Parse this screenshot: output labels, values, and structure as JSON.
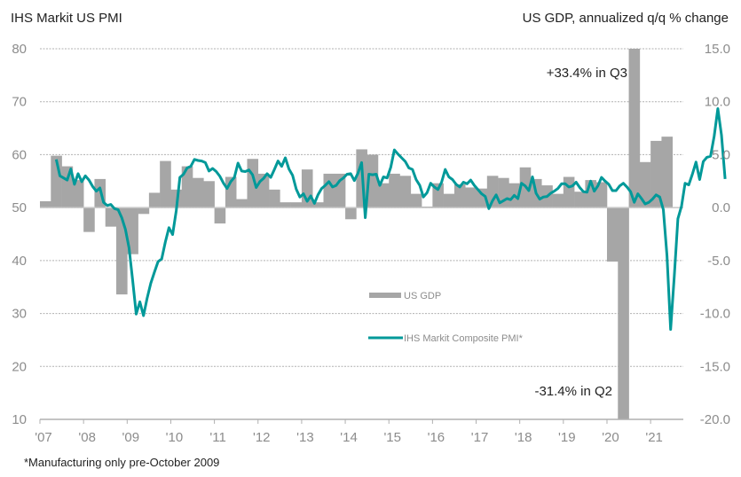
{
  "chart_data": {
    "type": "bar+line",
    "title_left": "IHS Markit  US PMI",
    "title_right": "US GDP, annualized  q/q % change",
    "footnote": "*Manufacturing only pre-October 2009",
    "left_axis": {
      "label": "IHS Markit US PMI",
      "ylim": [
        10,
        80
      ],
      "ticks": [
        80,
        70,
        60,
        50,
        40,
        30,
        20,
        10
      ],
      "tick_labels": [
        "80",
        "70",
        "60",
        "50",
        "40",
        "30",
        "20",
        "10"
      ]
    },
    "right_axis": {
      "label": "US GDP, annualized q/q % change",
      "ylim": [
        -20,
        15
      ],
      "ticks": [
        15,
        10,
        5,
        0,
        -5,
        -10,
        -15,
        -20
      ],
      "tick_labels": [
        "15.0",
        "10.0",
        "5.0",
        "0.0",
        "-5.0",
        "-10.0",
        "-15.0",
        "-20.0"
      ]
    },
    "x_axis": {
      "ticks": [
        "'07",
        "'08",
        "'09",
        "'10",
        "'11",
        "'12",
        "'13",
        "'14",
        "'15",
        "'16",
        "'17",
        "'18",
        "'19",
        "'20",
        "'21"
      ],
      "start_year": 2007,
      "end": 2021.75
    },
    "grid": true,
    "legend": {
      "position": "center",
      "entries": [
        "US GDP",
        "IHS Markit Composite PMI*"
      ]
    },
    "colors": {
      "gdp": "#a6a6a6",
      "pmi": "#009999",
      "grid": "#b0b0b0",
      "axis": "#b0b0b0"
    },
    "annotations": [
      {
        "text": "+33.4% in Q3",
        "series": "gdp",
        "period": "2020Q3",
        "value": 33.4
      },
      {
        "text": "-31.4% in Q2",
        "series": "gdp",
        "period": "2020Q2",
        "value": -31.4
      }
    ],
    "series": [
      {
        "name": "US GDP",
        "axis": "right",
        "type": "bar",
        "start": "2007Q1",
        "frequency": "quarterly",
        "values": [
          0.6,
          4.9,
          3.9,
          2.6,
          -2.3,
          2.7,
          -1.8,
          -8.2,
          -4.4,
          -0.6,
          1.4,
          4.4,
          1.7,
          3.9,
          2.8,
          2.5,
          -1.5,
          2.9,
          0.8,
          4.6,
          3.2,
          1.7,
          0.5,
          0.5,
          3.6,
          0.5,
          3.2,
          3.2,
          -1.1,
          5.5,
          5.0,
          2.3,
          3.2,
          3.0,
          1.3,
          0.1,
          2.3,
          1.3,
          2.2,
          1.9,
          1.8,
          3.0,
          2.8,
          2.3,
          3.8,
          2.7,
          2.1,
          1.3,
          2.9,
          1.5,
          2.6,
          2.4,
          -5.1,
          -31.4,
          33.4,
          4.3,
          6.3,
          6.7
        ]
      },
      {
        "name": "IHS Markit Composite PMI*",
        "axis": "left",
        "type": "line",
        "start": "2007-05",
        "frequency": "monthly",
        "values": [
          59.1,
          56.0,
          55.6,
          55.2,
          57.3,
          54.4,
          56.4,
          54.9,
          56.0,
          55.2,
          54.0,
          53.1,
          53.7,
          51.0,
          50.4,
          50.6,
          49.8,
          49.6,
          48.1,
          45.9,
          42.4,
          36.4,
          29.9,
          32.2,
          29.6,
          32.9,
          35.7,
          37.8,
          39.8,
          40.3,
          43.5,
          46.2,
          44.9,
          49.4,
          55.7,
          56.3,
          57.5,
          57.8,
          59.1,
          58.9,
          58.8,
          58.5,
          56.9,
          57.4,
          56.8,
          55.9,
          54.6,
          53.6,
          54.9,
          55.7,
          58.4,
          56.9,
          56.8,
          57.1,
          56.2,
          53.8,
          54.9,
          55.5,
          56.4,
          55.7,
          57.2,
          58.8,
          57.8,
          59.4,
          57.3,
          56.1,
          53.5,
          52.0,
          52.6,
          51.2,
          52.2,
          50.8,
          52.4,
          53.6,
          54.2,
          54.9,
          53.9,
          54.2,
          55.1,
          55.6,
          56.3,
          56.4,
          55.1,
          56.5,
          58.5,
          48.1,
          56.3,
          56.2,
          56.3,
          54.2,
          55.8,
          55.6,
          57.6,
          60.9,
          60.1,
          59.4,
          58.7,
          57.5,
          57.2,
          55.3,
          54.2,
          52.0,
          52.8,
          54.6,
          53.9,
          53.4,
          54.8,
          57.2,
          55.8,
          55.3,
          54.4,
          53.9,
          54.8,
          54.5,
          55.2,
          54.2,
          53.4,
          52.6,
          52.1,
          49.8,
          51.3,
          52.4,
          50.9,
          51.3,
          51.7,
          51.5,
          52.3,
          51.7,
          54.6,
          54.1,
          53.2,
          55.8,
          52.7,
          51.6,
          52.0,
          52.1,
          52.7,
          53.1,
          53.6,
          54.5,
          54.5,
          53.9,
          54.1,
          54.8,
          53.8,
          53.0,
          52.9,
          55.0,
          53.1,
          54.1,
          55.7,
          55.0,
          54.4,
          53.2,
          53.2,
          54.1,
          54.6,
          53.9,
          53.0,
          51.0,
          52.6,
          51.7,
          50.7,
          51.0,
          51.6,
          52.4,
          52.0,
          49.6,
          40.9,
          27.0,
          37.0,
          47.9,
          50.3,
          54.6,
          54.3,
          56.3,
          58.6,
          55.3,
          58.7,
          59.5,
          59.7,
          63.5,
          68.7,
          63.7,
          55.4
        ]
      }
    ]
  }
}
